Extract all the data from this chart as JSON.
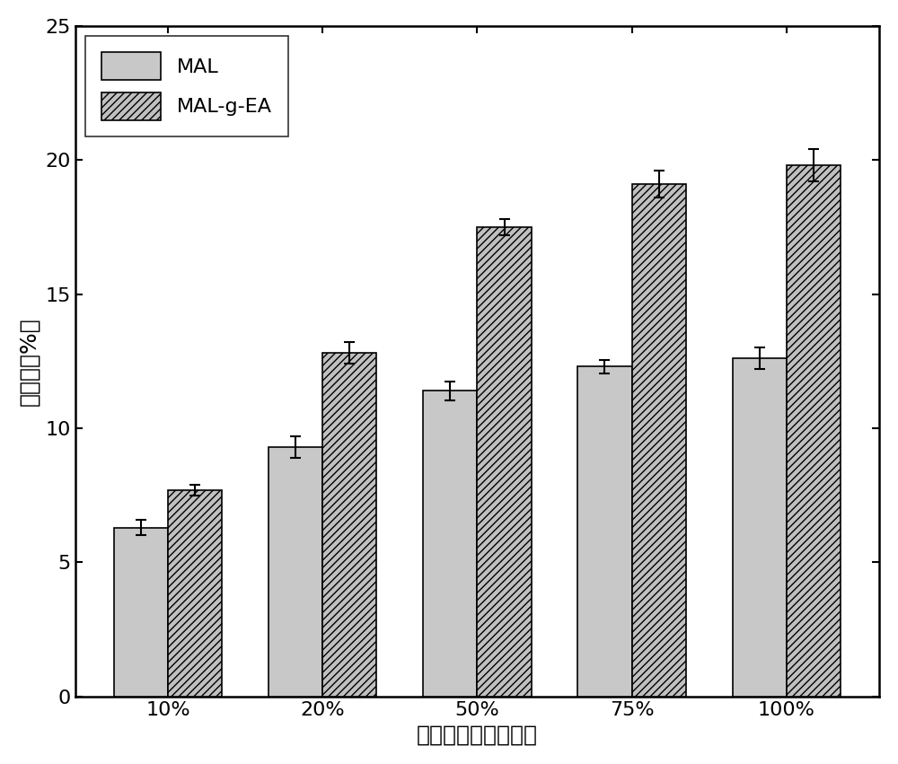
{
  "categories": [
    "10%",
    "20%",
    "50%",
    "75%",
    "100%"
  ],
  "MAL_values": [
    6.3,
    9.3,
    11.4,
    12.3,
    12.6
  ],
  "MAL_errors": [
    0.3,
    0.4,
    0.35,
    0.25,
    0.4
  ],
  "MAL_gEA_values": [
    7.7,
    12.8,
    17.5,
    19.1,
    19.8
  ],
  "MAL_gEA_errors": [
    0.2,
    0.4,
    0.3,
    0.5,
    0.6
  ],
  "bar_color_MAL": "#c8c8c8",
  "bar_color_MAL_gEA": "#c0c0c0",
  "bar_edgecolor": "#000000",
  "xlabel": "布洛芬的初始投料比",
  "ylabel": "载药率（%）",
  "ylim": [
    0,
    25
  ],
  "yticks": [
    0,
    5,
    10,
    15,
    20,
    25
  ],
  "legend_MAL": "MAL",
  "legend_MAL_gEA": "MAL-g-EA",
  "label_fontsize": 18,
  "tick_fontsize": 16,
  "legend_fontsize": 16,
  "bar_width": 0.35,
  "hatch_pattern": "////"
}
